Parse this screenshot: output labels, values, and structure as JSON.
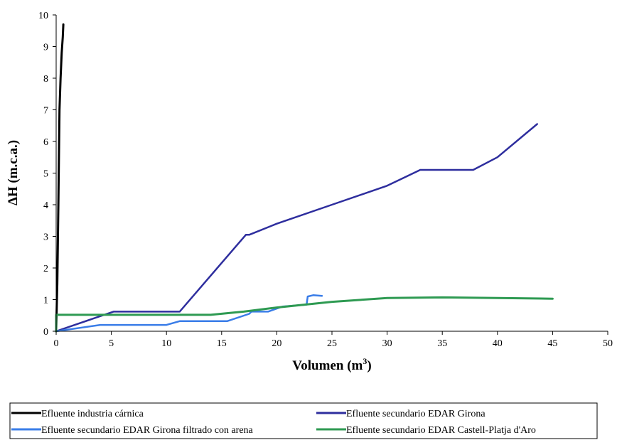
{
  "chart_data": {
    "type": "line",
    "title": "",
    "xlabel": "Volumen (m",
    "xlabel_sup": "3",
    "xlabel_tail": ")",
    "ylabel": "ΔH (m.c.a.)",
    "xlim": [
      0,
      50
    ],
    "ylim": [
      0,
      10
    ],
    "x_ticks": [
      "0",
      "5",
      "10",
      "15",
      "20",
      "25",
      "30",
      "35",
      "40",
      "45",
      "50"
    ],
    "y_ticks": [
      "0",
      "1",
      "2",
      "3",
      "4",
      "5",
      "6",
      "7",
      "8",
      "9",
      "10"
    ],
    "grid": false,
    "legend_position": "bottom",
    "series": [
      {
        "name": "Efluente industria cárnica",
        "color": "#000000",
        "points": [
          [
            0,
            0
          ],
          [
            0.1,
            1.5
          ],
          [
            0.2,
            4.0
          ],
          [
            0.3,
            7.0
          ],
          [
            0.4,
            8.0
          ],
          [
            0.5,
            8.8
          ],
          [
            0.6,
            9.3
          ],
          [
            0.65,
            9.7
          ]
        ]
      },
      {
        "name": "Efluente secundario EDAR Girona",
        "color": "#2e2e9e",
        "points": [
          [
            0,
            0
          ],
          [
            5.2,
            0.62
          ],
          [
            11.2,
            0.62
          ],
          [
            17.2,
            3.05
          ],
          [
            17.5,
            3.05
          ],
          [
            20,
            3.4
          ],
          [
            25,
            4.0
          ],
          [
            30,
            4.6
          ],
          [
            33,
            5.1
          ],
          [
            37.8,
            5.1
          ],
          [
            40,
            5.5
          ],
          [
            43.6,
            6.55
          ]
        ]
      },
      {
        "name": "Efluente secundario EDAR Girona filtrado con arena",
        "color": "#3a7de8",
        "points": [
          [
            0,
            0
          ],
          [
            4,
            0.2
          ],
          [
            10,
            0.2
          ],
          [
            11.2,
            0.32
          ],
          [
            15.5,
            0.32
          ],
          [
            17.5,
            0.55
          ],
          [
            17.7,
            0.62
          ],
          [
            19.2,
            0.62
          ],
          [
            20.5,
            0.78
          ],
          [
            22.7,
            0.84
          ],
          [
            22.8,
            1.1
          ],
          [
            23.3,
            1.14
          ],
          [
            24.1,
            1.12
          ]
        ]
      },
      {
        "name": "Efluente secundario EDAR Castell-Platja d'Aro",
        "color": "#2e9a52",
        "points": [
          [
            0,
            0
          ],
          [
            0,
            0.52
          ],
          [
            3,
            0.52
          ],
          [
            10,
            0.52
          ],
          [
            14,
            0.52
          ],
          [
            17,
            0.62
          ],
          [
            20,
            0.75
          ],
          [
            25,
            0.93
          ],
          [
            30,
            1.05
          ],
          [
            35,
            1.07
          ],
          [
            40,
            1.05
          ],
          [
            45,
            1.03
          ]
        ]
      }
    ]
  }
}
